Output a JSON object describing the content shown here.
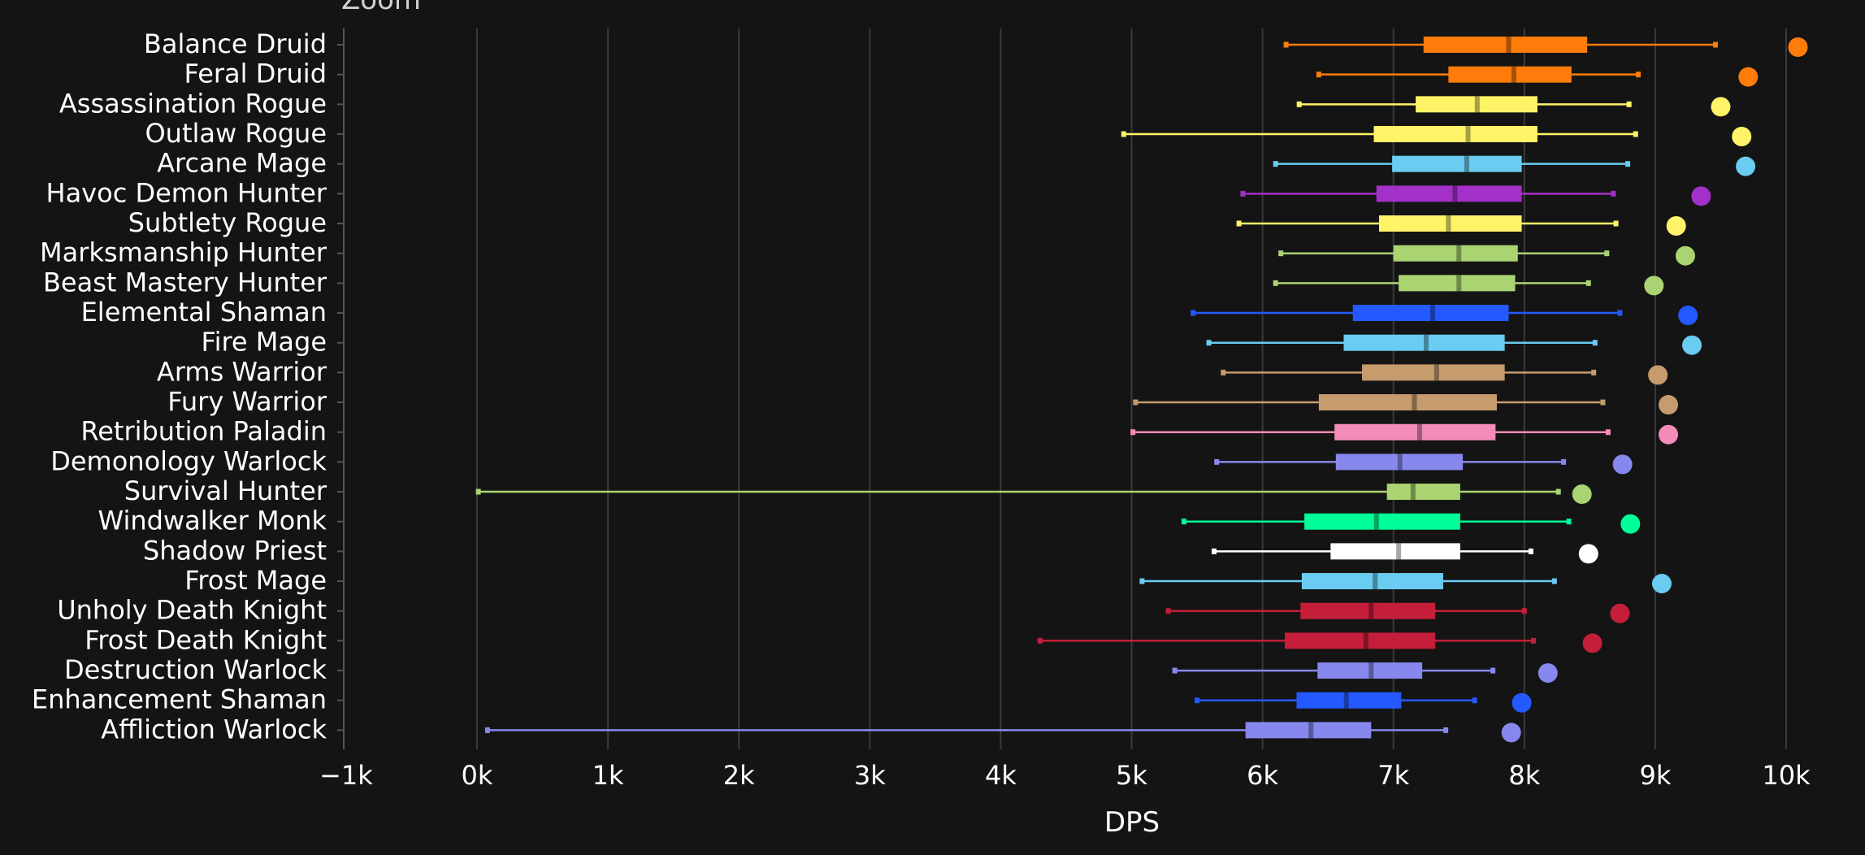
{
  "chart_data": {
    "type": "boxplot",
    "title": "",
    "top_label_partial": "Zoom",
    "xlabel": "DPS",
    "ylabel": "",
    "xlim": [
      -1000,
      10200
    ],
    "xticks": [
      -1000,
      0,
      1000,
      2000,
      3000,
      4000,
      5000,
      6000,
      7000,
      8000,
      9000,
      10000
    ],
    "xtick_labels": [
      "−1k",
      "0k",
      "1k",
      "2k",
      "3k",
      "4k",
      "5k",
      "6k",
      "7k",
      "8k",
      "9k",
      "10k"
    ],
    "grid": "vertical",
    "series": [
      {
        "name": "Balance Druid",
        "color": "#ff7c0a",
        "min": 6180,
        "q1": 7230,
        "median": 7880,
        "q3": 8480,
        "max": 9460,
        "top": 10090
      },
      {
        "name": "Feral Druid",
        "color": "#ff7c0a",
        "min": 6430,
        "q1": 7420,
        "median": 7920,
        "q3": 8360,
        "max": 8870,
        "top": 9710
      },
      {
        "name": "Assassination Rogue",
        "color": "#fff468",
        "min": 6280,
        "q1": 7170,
        "median": 7640,
        "q3": 8100,
        "max": 8800,
        "top": 9500
      },
      {
        "name": "Outlaw Rogue",
        "color": "#fff468",
        "min": 4940,
        "q1": 6850,
        "median": 7570,
        "q3": 8100,
        "max": 8850,
        "top": 9660
      },
      {
        "name": "Arcane Mage",
        "color": "#69ccf0",
        "min": 6100,
        "q1": 6990,
        "median": 7560,
        "q3": 7980,
        "max": 8790,
        "top": 9690
      },
      {
        "name": "Havoc Demon Hunter",
        "color": "#a330c9",
        "min": 5850,
        "q1": 6870,
        "median": 7470,
        "q3": 7980,
        "max": 8680,
        "top": 9350
      },
      {
        "name": "Subtlety Rogue",
        "color": "#fff468",
        "min": 5820,
        "q1": 6890,
        "median": 7420,
        "q3": 7980,
        "max": 8700,
        "top": 9160
      },
      {
        "name": "Marksmanship Hunter",
        "color": "#aad372",
        "min": 6140,
        "q1": 7000,
        "median": 7500,
        "q3": 7950,
        "max": 8630,
        "top": 9230
      },
      {
        "name": "Beast Mastery Hunter",
        "color": "#aad372",
        "min": 6100,
        "q1": 7040,
        "median": 7500,
        "q3": 7930,
        "max": 8490,
        "top": 8990
      },
      {
        "name": "Elemental Shaman",
        "color": "#2459ff",
        "min": 5470,
        "q1": 6690,
        "median": 7300,
        "q3": 7880,
        "max": 8730,
        "top": 9250
      },
      {
        "name": "Fire Mage",
        "color": "#69ccf0",
        "min": 5590,
        "q1": 6620,
        "median": 7250,
        "q3": 7850,
        "max": 8540,
        "top": 9280
      },
      {
        "name": "Arms Warrior",
        "color": "#c69b6d",
        "min": 5700,
        "q1": 6760,
        "median": 7330,
        "q3": 7850,
        "max": 8530,
        "top": 9020
      },
      {
        "name": "Fury Warrior",
        "color": "#c69b6d",
        "min": 5030,
        "q1": 6430,
        "median": 7160,
        "q3": 7790,
        "max": 8600,
        "top": 9100
      },
      {
        "name": "Retribution Paladin",
        "color": "#f48cba",
        "min": 5010,
        "q1": 6550,
        "median": 7200,
        "q3": 7780,
        "max": 8640,
        "top": 9100
      },
      {
        "name": "Demonology Warlock",
        "color": "#8788ee",
        "min": 5650,
        "q1": 6560,
        "median": 7050,
        "q3": 7530,
        "max": 8300,
        "top": 8750
      },
      {
        "name": "Survival Hunter",
        "color": "#aad372",
        "min": 10,
        "q1": 6950,
        "median": 7150,
        "q3": 7510,
        "max": 8260,
        "top": 8440
      },
      {
        "name": "Windwalker Monk",
        "color": "#00ff98",
        "min": 5400,
        "q1": 6320,
        "median": 6870,
        "q3": 7510,
        "max": 8340,
        "top": 8810
      },
      {
        "name": "Shadow Priest",
        "color": "#ffffff",
        "min": 5630,
        "q1": 6520,
        "median": 7040,
        "q3": 7510,
        "max": 8050,
        "top": 8490
      },
      {
        "name": "Frost Mage",
        "color": "#69ccf0",
        "min": 5080,
        "q1": 6300,
        "median": 6860,
        "q3": 7380,
        "max": 8230,
        "top": 9050
      },
      {
        "name": "Unholy Death Knight",
        "color": "#c41e3a",
        "min": 5280,
        "q1": 6290,
        "median": 6830,
        "q3": 7320,
        "max": 8000,
        "top": 8730
      },
      {
        "name": "Frost Death Knight",
        "color": "#c41e3a",
        "min": 4300,
        "q1": 6170,
        "median": 6790,
        "q3": 7320,
        "max": 8070,
        "top": 8520
      },
      {
        "name": "Destruction Warlock",
        "color": "#8788ee",
        "min": 5330,
        "q1": 6420,
        "median": 6830,
        "q3": 7220,
        "max": 7760,
        "top": 8180
      },
      {
        "name": "Enhancement Shaman",
        "color": "#2459ff",
        "min": 5500,
        "q1": 6260,
        "median": 6640,
        "q3": 7060,
        "max": 7620,
        "top": 7980
      },
      {
        "name": "Affliction Warlock",
        "color": "#8788ee",
        "min": 80,
        "q1": 5870,
        "median": 6370,
        "q3": 6830,
        "max": 7400,
        "top": 7900
      }
    ]
  },
  "style": {
    "background": "#141414",
    "grid_color": "#3a3a3a",
    "axis_color": "#555555",
    "text_color": "#ffffff"
  }
}
